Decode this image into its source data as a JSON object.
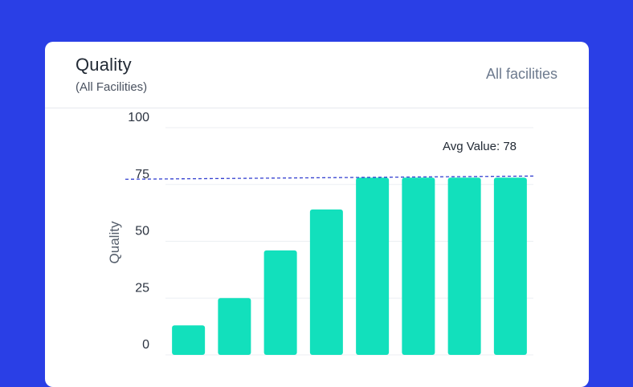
{
  "header": {
    "title": "Quality",
    "subtitle": "(All Facilities)",
    "filter_label": "All facilities"
  },
  "colors": {
    "background": "#2a3fe6",
    "bar": "#12e0bc",
    "avg_line": "#3440d0",
    "grid": "#eceff3"
  },
  "chart_data": {
    "type": "bar",
    "title": "Quality",
    "ylabel": "Quality",
    "ylim": [
      0,
      100
    ],
    "yticks": [
      0,
      25,
      50,
      75,
      100
    ],
    "grid": true,
    "categories": [
      "",
      "",
      "",
      "",
      "",
      "",
      "",
      ""
    ],
    "values": [
      13,
      25,
      46,
      64,
      78,
      78,
      78,
      78
    ],
    "reference_line": {
      "value": 78,
      "label": "Avg Value: 78",
      "style": "dashed"
    }
  }
}
